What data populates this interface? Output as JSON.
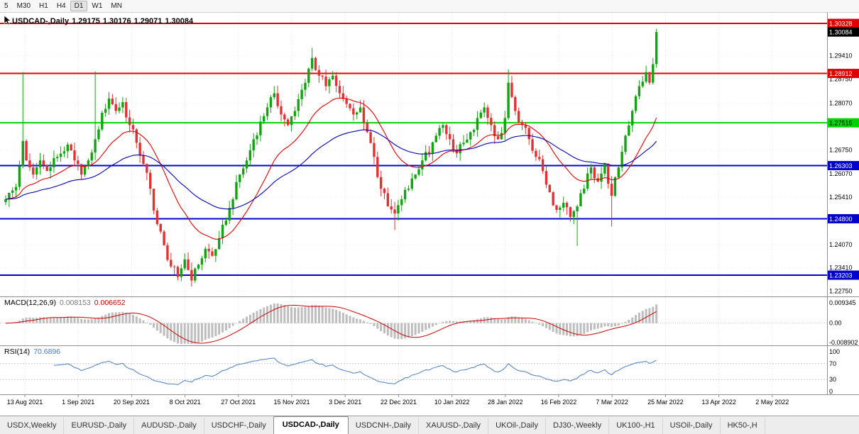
{
  "toolbar": {
    "timeframes": [
      "5",
      "M30",
      "H1",
      "H4",
      "D1",
      "W1",
      "MN"
    ],
    "active": "D1"
  },
  "chart": {
    "title": {
      "symbol": "USDCAD-,Daily",
      "open": "1.29175",
      "high": "1.30176",
      "low": "1.29071",
      "close": "1.30084"
    },
    "price_axis": {
      "ticks": [
        {
          "label": "1.29410",
          "value": 1.2941
        },
        {
          "label": "1.28750",
          "value": 1.2875
        },
        {
          "label": "1.28070",
          "value": 1.2807
        },
        {
          "label": "1.26750",
          "value": 1.2675
        },
        {
          "label": "1.26070",
          "value": 1.2607
        },
        {
          "label": "1.25410",
          "value": 1.2541
        },
        {
          "label": "1.24070",
          "value": 1.2407
        },
        {
          "label": "1.23410",
          "value": 1.2341
        },
        {
          "label": "1.22750",
          "value": 1.2275
        }
      ],
      "badges": [
        {
          "label": "1.30328",
          "value": 1.30328,
          "bg": "#E00000",
          "fg": "#FFFFFF"
        },
        {
          "label": "1.30084",
          "value": 1.30084,
          "bg": "#000000",
          "fg": "#FFFFFF"
        },
        {
          "label": "1.28912",
          "value": 1.28912,
          "bg": "#E00000",
          "fg": "#FFFFFF"
        },
        {
          "label": "1.27515",
          "value": 1.27515,
          "bg": "#00D400",
          "fg": "#000000"
        },
        {
          "label": "1.26303",
          "value": 1.26303,
          "bg": "#0000CC",
          "fg": "#FFFFFF"
        },
        {
          "label": "1.24800",
          "value": 1.248,
          "bg": "#0000CC",
          "fg": "#FFFFFF"
        },
        {
          "label": "1.23203",
          "value": 1.23203,
          "bg": "#0000CC",
          "fg": "#FFFFFF"
        }
      ]
    },
    "hlines": [
      {
        "value": 1.30328,
        "color": "#E00000",
        "width": 2
      },
      {
        "value": 1.28912,
        "color": "#E00000",
        "width": 2
      },
      {
        "value": 1.27515,
        "color": "#00D400",
        "width": 2
      },
      {
        "value": 1.26303,
        "color": "#0000CC",
        "width": 2
      },
      {
        "value": 1.248,
        "color": "#0000CC",
        "width": 2
      },
      {
        "value": 1.23203,
        "color": "#0000CC",
        "width": 2
      }
    ],
    "date_axis": {
      "labels": [
        "13 Aug 2021",
        "1 Sep 2021",
        "20 Sep 2021",
        "8 Oct 2021",
        "27 Oct 2021",
        "15 Nov 2021",
        "3 Dec 2021",
        "22 Dec 2021",
        "10 Jan 2022",
        "28 Jan 2022",
        "16 Feb 2022",
        "7 Mar 2022",
        "25 Mar 2022",
        "13 Apr 2022",
        "2 May 2022"
      ]
    }
  },
  "macd": {
    "label": "MACD(12,26,9)",
    "value_main": "0.008153",
    "value_signal": "0.006652",
    "axis": [
      {
        "label": "0.009345",
        "value": 0.009345
      },
      {
        "label": "0.00",
        "value": 0
      },
      {
        "label": "-0.008902",
        "value": -0.008902
      }
    ],
    "histogram_color": "#bdbdbd",
    "signal_color": "#cc0000"
  },
  "rsi": {
    "label": "RSI(14)",
    "value": "70.6896",
    "axis": [
      {
        "label": "100",
        "value": 100
      },
      {
        "label": "70",
        "value": 70
      },
      {
        "label": "30",
        "value": 30
      },
      {
        "label": "0",
        "value": 0
      }
    ],
    "levels": [
      70,
      30
    ],
    "line_color": "#4a7ebf"
  },
  "tabs": {
    "items": [
      "USDX,Weekly",
      "EURUSD-,Daily",
      "AUDUSD-,Daily",
      "USDCHF-,Daily",
      "USDCAD-,Daily",
      "USDCNH-,Daily",
      "XAUUSD-,Daily",
      "UKOil-,Daily",
      "DJ30-,Weekly",
      "UK100-,H1",
      "USOil-,Daily",
      "HK50-,H"
    ],
    "active": "USDCAD-,Daily"
  },
  "chart_data": {
    "type": "candlestick",
    "symbol": "USDCAD",
    "timeframe": "Daily",
    "last_ohlc": {
      "open": 1.29175,
      "high": 1.30176,
      "low": 1.29071,
      "close": 1.30084
    },
    "price_range_visible": [
      1.226,
      1.3065
    ],
    "bar_count": 190,
    "up_color": "#12A212",
    "down_color": "#E03232",
    "ma_fast": {
      "period": 21,
      "color": "#E00000"
    },
    "ma_slow": {
      "period": 55,
      "color": "#0000B4"
    },
    "support_resistance": [
      1.30328,
      1.28912,
      1.27515,
      1.26303,
      1.248,
      1.23203
    ],
    "x_dates": [
      "13 Aug 2021",
      "1 Sep 2021",
      "20 Sep 2021",
      "8 Oct 2021",
      "27 Oct 2021",
      "15 Nov 2021",
      "3 Dec 2021",
      "22 Dec 2021",
      "10 Jan 2022",
      "28 Jan 2022",
      "16 Feb 2022",
      "7 Mar 2022",
      "25 Mar 2022",
      "13 Apr 2022",
      "2 May 2022"
    ],
    "close_anchors": [
      [
        0,
        1.2535
      ],
      [
        3,
        1.257
      ],
      [
        5,
        1.27
      ],
      [
        6,
        1.2645
      ],
      [
        8,
        1.2605
      ],
      [
        10,
        1.2645
      ],
      [
        12,
        1.2615
      ],
      [
        15,
        1.2655
      ],
      [
        18,
        1.269
      ],
      [
        20,
        1.2645
      ],
      [
        22,
        1.2605
      ],
      [
        24,
        1.2645
      ],
      [
        26,
        1.2705
      ],
      [
        28,
        1.278
      ],
      [
        30,
        1.282
      ],
      [
        32,
        1.2785
      ],
      [
        34,
        1.281
      ],
      [
        36,
        1.2745
      ],
      [
        38,
        1.2695
      ],
      [
        40,
        1.2635
      ],
      [
        42,
        1.2565
      ],
      [
        44,
        1.2465
      ],
      [
        46,
        1.2405
      ],
      [
        48,
        1.2345
      ],
      [
        50,
        1.2315
      ],
      [
        52,
        1.2365
      ],
      [
        54,
        1.2305
      ],
      [
        56,
        1.235
      ],
      [
        58,
        1.2395
      ],
      [
        60,
        1.2375
      ],
      [
        62,
        1.2425
      ],
      [
        64,
        1.2475
      ],
      [
        66,
        1.2535
      ],
      [
        68,
        1.2605
      ],
      [
        70,
        1.2645
      ],
      [
        72,
        1.2705
      ],
      [
        74,
        1.2755
      ],
      [
        76,
        1.2795
      ],
      [
        78,
        1.2835
      ],
      [
        80,
        1.2775
      ],
      [
        82,
        1.2745
      ],
      [
        84,
        1.2785
      ],
      [
        86,
        1.2845
      ],
      [
        88,
        1.2905
      ],
      [
        89,
        1.2935
      ],
      [
        91,
        1.2885
      ],
      [
        93,
        1.2855
      ],
      [
        95,
        1.2885
      ],
      [
        97,
        1.2835
      ],
      [
        99,
        1.2805
      ],
      [
        101,
        1.2775
      ],
      [
        103,
        1.2795
      ],
      [
        105,
        1.2725
      ],
      [
        107,
        1.2655
      ],
      [
        109,
        1.2565
      ],
      [
        111,
        1.2515
      ],
      [
        113,
        1.2495
      ],
      [
        115,
        1.2535
      ],
      [
        117,
        1.2565
      ],
      [
        119,
        1.2605
      ],
      [
        121,
        1.2645
      ],
      [
        123,
        1.2665
      ],
      [
        125,
        1.2715
      ],
      [
        127,
        1.2745
      ],
      [
        129,
        1.2705
      ],
      [
        131,
        1.2665
      ],
      [
        133,
        1.2695
      ],
      [
        135,
        1.2725
      ],
      [
        137,
        1.2765
      ],
      [
        139,
        1.2795
      ],
      [
        141,
        1.2745
      ],
      [
        143,
        1.2705
      ],
      [
        145,
        1.2765
      ],
      [
        146,
        1.2865
      ],
      [
        148,
        1.2785
      ],
      [
        150,
        1.2745
      ],
      [
        152,
        1.2705
      ],
      [
        154,
        1.2655
      ],
      [
        156,
        1.2615
      ],
      [
        158,
        1.2555
      ],
      [
        160,
        1.2505
      ],
      [
        162,
        1.2525
      ],
      [
        164,
        1.2485
      ],
      [
        166,
        1.2515
      ],
      [
        168,
        1.2565
      ],
      [
        170,
        1.2625
      ],
      [
        172,
        1.2585
      ],
      [
        174,
        1.2635
      ],
      [
        176,
        1.2545
      ],
      [
        178,
        1.2625
      ],
      [
        180,
        1.2715
      ],
      [
        182,
        1.2785
      ],
      [
        184,
        1.2855
      ],
      [
        186,
        1.2895
      ],
      [
        187,
        1.2865
      ],
      [
        188,
        1.29175
      ],
      [
        189,
        1.30084
      ]
    ],
    "wick_overrides": {
      "5": {
        "high": 1.2895
      },
      "26": {
        "high": 1.2897
      },
      "54": {
        "low": 1.2288
      },
      "89": {
        "high": 1.2964
      },
      "113": {
        "low": 1.2448
      },
      "146": {
        "high": 1.2902
      },
      "166": {
        "low": 1.2403
      },
      "176": {
        "low": 1.2458
      },
      "189": {
        "high": 1.30176,
        "low": 1.29071
      }
    }
  }
}
